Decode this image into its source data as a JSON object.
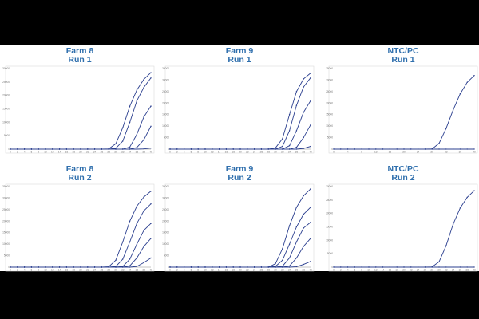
{
  "chart_data": [
    {
      "type": "line",
      "title": "Farm 8",
      "subtitle": "Run 1",
      "x": [
        0,
        2,
        4,
        6,
        8,
        10,
        12,
        14,
        16,
        18,
        20,
        22,
        24,
        26,
        28,
        30,
        32,
        34,
        36,
        38,
        40
      ],
      "xticks": [
        "0",
        "2",
        "4",
        "6",
        "8",
        "10",
        "12",
        "14",
        "16",
        "18",
        "20",
        "22",
        "24",
        "26",
        "28",
        "30",
        "32",
        "34",
        "36",
        "38",
        "40"
      ],
      "xlim": [
        0,
        40
      ],
      "ylim": [
        0,
        30000
      ],
      "yticks": [
        "0",
        "5000",
        "10000",
        "15000",
        "20000",
        "25000",
        "30000"
      ],
      "grid": false,
      "colors": [
        "#2b3f8f",
        "#2b3f8f",
        "#2b3f8f",
        "#2b3f8f",
        "#2b3f8f"
      ],
      "series": [
        {
          "y": [
            0,
            0,
            0,
            0,
            0,
            0,
            0,
            0,
            0,
            0,
            0,
            0,
            0,
            0,
            100,
            2000,
            8000,
            16000,
            22000,
            26000,
            28500
          ]
        },
        {
          "y": [
            0,
            0,
            0,
            0,
            0,
            0,
            0,
            0,
            0,
            0,
            0,
            0,
            0,
            0,
            0,
            300,
            3000,
            10000,
            18000,
            23000,
            26500
          ]
        },
        {
          "y": [
            0,
            0,
            0,
            0,
            0,
            0,
            0,
            0,
            0,
            0,
            0,
            0,
            0,
            0,
            0,
            0,
            0,
            800,
            5500,
            12000,
            16000
          ]
        },
        {
          "y": [
            0,
            0,
            0,
            0,
            0,
            0,
            0,
            0,
            0,
            0,
            0,
            0,
            0,
            0,
            0,
            0,
            0,
            0,
            600,
            3500,
            8500
          ]
        },
        {
          "y": [
            0,
            0,
            0,
            0,
            0,
            0,
            0,
            0,
            0,
            0,
            0,
            0,
            0,
            0,
            0,
            0,
            0,
            0,
            0,
            100,
            400
          ]
        }
      ]
    },
    {
      "type": "line",
      "title": "Farm 9",
      "subtitle": "Run 1",
      "x": [
        0,
        2,
        4,
        6,
        8,
        10,
        12,
        14,
        16,
        18,
        20,
        22,
        24,
        26,
        28,
        30,
        32,
        34,
        36,
        38,
        40
      ],
      "xticks": [
        "0",
        "2",
        "4",
        "6",
        "8",
        "10",
        "12",
        "14",
        "16",
        "18",
        "20",
        "22",
        "24",
        "26",
        "28",
        "30",
        "32",
        "34",
        "36",
        "38",
        "40"
      ],
      "xlim": [
        0,
        40
      ],
      "ylim": [
        0,
        35000
      ],
      "yticks": [
        "0",
        "5000",
        "10000",
        "15000",
        "20000",
        "25000",
        "30000",
        "35000"
      ],
      "grid": false,
      "colors": [
        "#2b3f8f",
        "#2b3f8f",
        "#2b3f8f",
        "#2b3f8f",
        "#2b3f8f"
      ],
      "series": [
        {
          "y": [
            0,
            0,
            0,
            0,
            0,
            0,
            0,
            0,
            0,
            0,
            0,
            0,
            0,
            0,
            0,
            500,
            4500,
            15000,
            25000,
            30500,
            33000
          ]
        },
        {
          "y": [
            0,
            0,
            0,
            0,
            0,
            0,
            0,
            0,
            0,
            0,
            0,
            0,
            0,
            0,
            0,
            0,
            1200,
            8000,
            19000,
            27000,
            31000
          ]
        },
        {
          "y": [
            0,
            0,
            0,
            0,
            0,
            0,
            0,
            0,
            0,
            0,
            0,
            0,
            0,
            0,
            0,
            0,
            0,
            1500,
            8000,
            16000,
            21000
          ]
        },
        {
          "y": [
            0,
            0,
            0,
            0,
            0,
            0,
            0,
            0,
            0,
            0,
            0,
            0,
            0,
            0,
            0,
            0,
            0,
            0,
            800,
            5000,
            10500
          ]
        },
        {
          "y": [
            0,
            0,
            0,
            0,
            0,
            0,
            0,
            0,
            0,
            0,
            0,
            0,
            0,
            0,
            0,
            0,
            0,
            0,
            0,
            300,
            1200
          ]
        }
      ]
    },
    {
      "type": "line",
      "title": "NTC/PC",
      "subtitle": "Run 1",
      "x": [
        0,
        2,
        4,
        6,
        8,
        10,
        12,
        14,
        16,
        18,
        20,
        22,
        24,
        26,
        28,
        30,
        32,
        34,
        36,
        38,
        40
      ],
      "xticks": [
        "0",
        "4",
        "8",
        "12",
        "16",
        "20",
        "24",
        "28",
        "32",
        "36",
        "40"
      ],
      "xlim": [
        0,
        40
      ],
      "ylim": [
        0,
        35000
      ],
      "yticks": [
        "0",
        "5000",
        "10000",
        "15000",
        "20000",
        "25000",
        "30000",
        "35000"
      ],
      "grid": false,
      "colors": [
        "#2b3f8f",
        "#2b3f8f"
      ],
      "series": [
        {
          "y": [
            0,
            0,
            0,
            0,
            0,
            0,
            0,
            0,
            0,
            0,
            0,
            0,
            0,
            0,
            100,
            2500,
            9000,
            17000,
            24000,
            29000,
            32000
          ]
        },
        {
          "y": [
            0,
            0,
            0,
            0,
            0,
            0,
            0,
            0,
            0,
            0,
            0,
            0,
            0,
            0,
            0,
            0,
            0,
            0,
            0,
            0,
            0
          ]
        }
      ]
    },
    {
      "type": "line",
      "title": "Farm 8",
      "subtitle": "Run 2",
      "x": [
        0,
        2,
        4,
        6,
        8,
        10,
        12,
        14,
        16,
        18,
        20,
        22,
        24,
        26,
        28,
        30,
        32,
        34,
        36,
        38,
        40
      ],
      "xticks": [
        "0",
        "2",
        "4",
        "6",
        "8",
        "10",
        "12",
        "14",
        "16",
        "18",
        "20",
        "22",
        "24",
        "26",
        "28",
        "30",
        "32",
        "34",
        "36",
        "38",
        "40"
      ],
      "xlim": [
        0,
        40
      ],
      "ylim": [
        0,
        35000
      ],
      "yticks": [
        "0",
        "5000",
        "10000",
        "15000",
        "20000",
        "25000",
        "30000",
        "35000"
      ],
      "grid": false,
      "colors": [
        "#2b3f8f",
        "#2b3f8f",
        "#2b3f8f",
        "#2b3f8f",
        "#2b3f8f"
      ],
      "series": [
        {
          "y": [
            0,
            0,
            0,
            0,
            0,
            0,
            0,
            0,
            0,
            0,
            0,
            0,
            0,
            0,
            200,
            3000,
            11000,
            20000,
            26500,
            30500,
            33000
          ]
        },
        {
          "y": [
            0,
            0,
            0,
            0,
            0,
            0,
            0,
            0,
            0,
            0,
            0,
            0,
            0,
            0,
            0,
            300,
            3500,
            11000,
            19000,
            24500,
            27500
          ]
        },
        {
          "y": [
            0,
            0,
            0,
            0,
            0,
            0,
            0,
            0,
            0,
            0,
            0,
            0,
            0,
            0,
            0,
            0,
            300,
            3500,
            10000,
            16000,
            19000
          ]
        },
        {
          "y": [
            0,
            0,
            0,
            0,
            0,
            0,
            0,
            0,
            0,
            0,
            0,
            0,
            0,
            0,
            0,
            0,
            0,
            600,
            4000,
            9000,
            12500
          ]
        },
        {
          "y": [
            0,
            0,
            0,
            0,
            0,
            0,
            0,
            0,
            0,
            0,
            0,
            0,
            0,
            0,
            0,
            0,
            0,
            0,
            300,
            2000,
            4000
          ]
        }
      ]
    },
    {
      "type": "line",
      "title": "Farm 9",
      "subtitle": "Run 2",
      "x": [
        0,
        2,
        4,
        6,
        8,
        10,
        12,
        14,
        16,
        18,
        20,
        22,
        24,
        26,
        28,
        30,
        32,
        34,
        36,
        38,
        40
      ],
      "xticks": [
        "0",
        "2",
        "4",
        "6",
        "8",
        "10",
        "12",
        "14",
        "16",
        "18",
        "20",
        "22",
        "24",
        "26",
        "28",
        "30",
        "32",
        "34",
        "36",
        "38",
        "40"
      ],
      "xlim": [
        0,
        40
      ],
      "ylim": [
        0,
        35000
      ],
      "yticks": [
        "0",
        "5000",
        "10000",
        "15000",
        "20000",
        "25000",
        "30000",
        "35000"
      ],
      "grid": false,
      "colors": [
        "#2b3f8f",
        "#2b3f8f",
        "#2b3f8f",
        "#2b3f8f",
        "#2b3f8f"
      ],
      "series": [
        {
          "y": [
            0,
            0,
            0,
            0,
            0,
            0,
            0,
            0,
            0,
            0,
            0,
            0,
            0,
            0,
            0,
            1500,
            8000,
            18000,
            26000,
            31000,
            34000
          ]
        },
        {
          "y": [
            0,
            0,
            0,
            0,
            0,
            0,
            0,
            0,
            0,
            0,
            0,
            0,
            0,
            0,
            0,
            300,
            3000,
            10000,
            17500,
            23000,
            26000
          ]
        },
        {
          "y": [
            0,
            0,
            0,
            0,
            0,
            0,
            0,
            0,
            0,
            0,
            0,
            0,
            0,
            0,
            0,
            0,
            400,
            4000,
            11000,
            17000,
            19500
          ]
        },
        {
          "y": [
            0,
            0,
            0,
            0,
            0,
            0,
            0,
            0,
            0,
            0,
            0,
            0,
            0,
            0,
            0,
            0,
            0,
            500,
            4000,
            9000,
            12500
          ]
        },
        {
          "y": [
            0,
            0,
            0,
            0,
            0,
            0,
            0,
            0,
            0,
            0,
            0,
            0,
            0,
            0,
            0,
            0,
            0,
            0,
            200,
            1200,
            2500
          ]
        }
      ]
    },
    {
      "type": "line",
      "title": "NTC/PC",
      "subtitle": "Run 2",
      "x": [
        0,
        2,
        4,
        6,
        8,
        10,
        12,
        14,
        16,
        18,
        20,
        22,
        24,
        26,
        28,
        30,
        32,
        34,
        36,
        38,
        40
      ],
      "xticks": [
        "0",
        "2",
        "4",
        "6",
        "8",
        "10",
        "12",
        "14",
        "16",
        "18",
        "20",
        "22",
        "24",
        "26",
        "28",
        "30",
        "32",
        "34",
        "36",
        "38",
        "40"
      ],
      "xlim": [
        0,
        40
      ],
      "ylim": [
        0,
        30000
      ],
      "yticks": [
        "0",
        "5000",
        "10000",
        "15000",
        "20000",
        "25000",
        "30000"
      ],
      "grid": false,
      "colors": [
        "#2b3f8f",
        "#2b3f8f"
      ],
      "series": [
        {
          "y": [
            0,
            0,
            0,
            0,
            0,
            0,
            0,
            0,
            0,
            0,
            0,
            0,
            0,
            0,
            100,
            2000,
            8000,
            16000,
            22000,
            26000,
            28500
          ]
        },
        {
          "y": [
            0,
            0,
            0,
            0,
            0,
            0,
            0,
            0,
            0,
            0,
            0,
            0,
            0,
            0,
            0,
            0,
            0,
            0,
            0,
            0,
            0
          ]
        }
      ]
    }
  ]
}
